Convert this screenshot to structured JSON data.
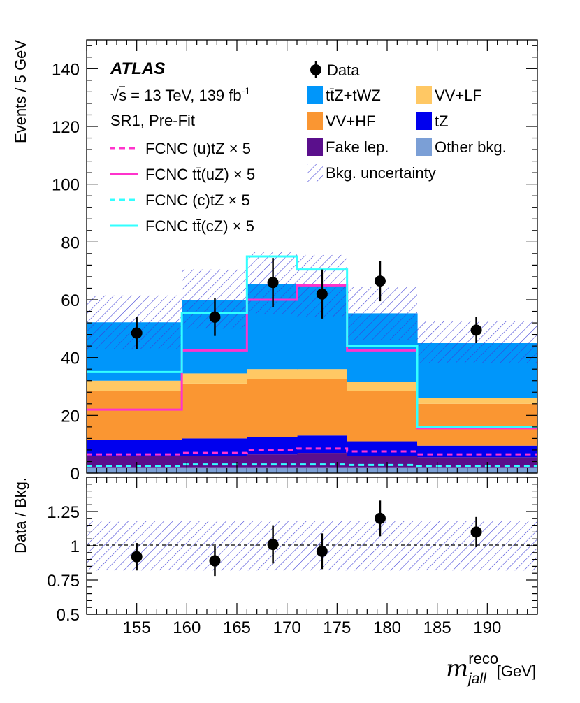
{
  "chart_data": {
    "type": "stacked-histogram",
    "experiment": "ATLAS",
    "energy_text": "√s = 13 TeV, 139 fb",
    "lumi_exp": "-1",
    "region": "SR1, Pre-Fit",
    "bin_edges": [
      150,
      159.5,
      166,
      171,
      176,
      183,
      195
    ],
    "xlim": [
      150,
      195
    ],
    "xticks": [
      "155",
      "160",
      "165",
      "170",
      "175",
      "180",
      "185",
      "190"
    ],
    "xlabel_main": "m",
    "xlabel_super": "reco",
    "xlabel_sub": "jall",
    "xlabel_unit": "[GeV]",
    "top": {
      "ylabel": "Events / 5 GeV",
      "ylim": [
        0,
        150
      ],
      "yticks": [
        "0",
        "20",
        "40",
        "60",
        "80",
        "100",
        "120",
        "140"
      ],
      "stack": [
        {
          "name": "Other bkg.",
          "color": "#7b9fd6",
          "values": [
            2.0,
            2.0,
            2.0,
            2.0,
            2.0,
            2.0
          ]
        },
        {
          "name": "Fake lep.",
          "color": "#5a0f8c",
          "values": [
            4.0,
            4.0,
            4.5,
            5.0,
            4.0,
            3.5
          ]
        },
        {
          "name": "tZ",
          "color": "#0000ee",
          "values": [
            5.5,
            6.0,
            6.0,
            6.0,
            5.0,
            4.0
          ]
        },
        {
          "name": "VV+HF",
          "color": "#fa9632",
          "values": [
            17.0,
            19.0,
            20.0,
            19.5,
            17.5,
            14.5
          ]
        },
        {
          "name": "VV+LF",
          "color": "#ffc864",
          "values": [
            3.5,
            3.5,
            3.5,
            3.5,
            3.0,
            2.0
          ]
        },
        {
          "name": "tt̄Z+tWZ",
          "color": "#0096fa",
          "values": [
            20.2,
            25.5,
            29.5,
            29.0,
            23.8,
            19.0
          ]
        }
      ],
      "uncertainty": {
        "name": "Bkg. uncertainty",
        "low": [
          43.0,
          50.0,
          55.0,
          54.0,
          46.0,
          38.0
        ],
        "high": [
          61.5,
          70.5,
          76.5,
          75.5,
          64.5,
          52.5
        ]
      },
      "signals": [
        {
          "name": "FCNC (u)tZ × 5",
          "color": "#ff33cc",
          "style": "dashed",
          "values": [
            6.5,
            7.0,
            8.0,
            8.5,
            7.5,
            6.5
          ]
        },
        {
          "name": "FCNC tt̄(uZ) × 5",
          "color": "#ff33cc",
          "style": "solid",
          "values": [
            22.0,
            42.5,
            60.0,
            65.0,
            42.5,
            15.5
          ]
        },
        {
          "name": "FCNC (c)tZ × 5",
          "color": "#33ffff",
          "style": "dashed",
          "values": [
            2.5,
            3.0,
            3.0,
            3.0,
            2.8,
            2.5
          ]
        },
        {
          "name": "FCNC tt̄(cZ) × 5",
          "color": "#33ffff",
          "style": "solid",
          "values": [
            35.0,
            55.5,
            75.0,
            70.5,
            44.0,
            16.0
          ]
        }
      ],
      "data": {
        "name": "Data",
        "x": [
          155,
          162.8,
          168.6,
          173.5,
          179.3,
          188.9
        ],
        "y": [
          48.5,
          54.0,
          66.0,
          62.0,
          66.5,
          49.5
        ],
        "err": [
          5.5,
          6.5,
          8.5,
          8.5,
          7.0,
          4.5
        ]
      }
    },
    "ratio": {
      "ylabel": "Data / Bkg.",
      "ylim": [
        0.5,
        1.5
      ],
      "yticks": [
        "0.5",
        "0.75",
        "1",
        "1.25"
      ],
      "band": [
        0.82,
        1.18
      ],
      "points": {
        "x": [
          155,
          162.8,
          168.6,
          173.5,
          179.3,
          188.9
        ],
        "y": [
          0.92,
          0.89,
          1.01,
          0.96,
          1.2,
          1.1
        ],
        "err": [
          0.1,
          0.11,
          0.14,
          0.13,
          0.13,
          0.11
        ]
      }
    }
  }
}
